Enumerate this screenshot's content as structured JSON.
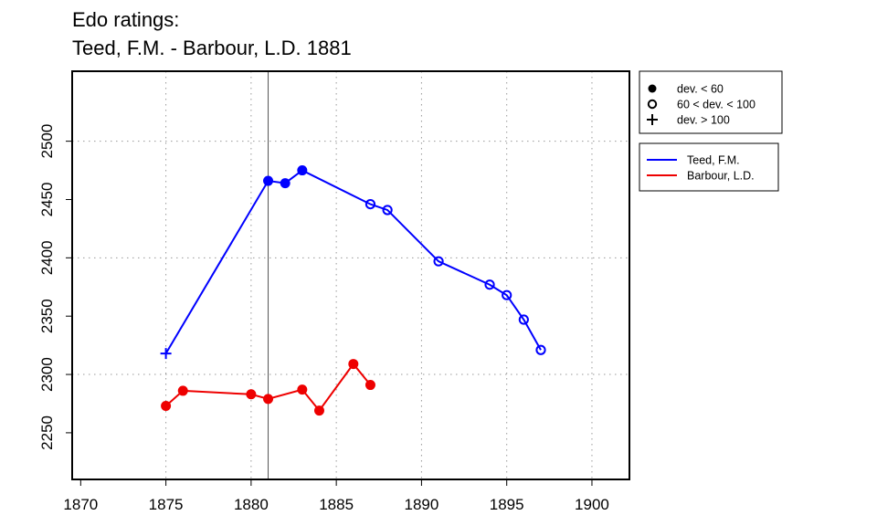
{
  "title_line1": "Edo ratings:",
  "title_line2": "Teed, F.M. - Barbour, L.D. 1881",
  "chart_data": {
    "type": "line",
    "xlim": [
      1869.5,
      1902.2
    ],
    "ylim": [
      2210,
      2560
    ],
    "x_ticks": [
      1870,
      1875,
      1880,
      1885,
      1890,
      1895,
      1900
    ],
    "y_ticks": [
      2250,
      2300,
      2350,
      2400,
      2450,
      2500
    ],
    "grid": true,
    "grid_x": [
      1875,
      1880,
      1885,
      1890,
      1895,
      1900
    ],
    "grid_y": [
      2300,
      2400,
      2500
    ],
    "reference_line_x": 1881,
    "marker_legend": [
      {
        "label": "dev. < 60",
        "marker": "filled-circle"
      },
      {
        "label": "60 < dev. < 100",
        "marker": "open-circle"
      },
      {
        "label": "dev. > 100",
        "marker": "plus"
      }
    ],
    "series": [
      {
        "name": "Teed, F.M.",
        "color": "#0000ff",
        "points": [
          {
            "x": 1875,
            "y": 2318,
            "marker": "plus"
          },
          {
            "x": 1881,
            "y": 2466,
            "marker": "filled-circle"
          },
          {
            "x": 1882,
            "y": 2464,
            "marker": "filled-circle"
          },
          {
            "x": 1883,
            "y": 2475,
            "marker": "filled-circle"
          },
          {
            "x": 1887,
            "y": 2446,
            "marker": "open-circle"
          },
          {
            "x": 1888,
            "y": 2441,
            "marker": "open-circle"
          },
          {
            "x": 1891,
            "y": 2397,
            "marker": "open-circle"
          },
          {
            "x": 1894,
            "y": 2377,
            "marker": "open-circle"
          },
          {
            "x": 1895,
            "y": 2368,
            "marker": "open-circle"
          },
          {
            "x": 1896,
            "y": 2347,
            "marker": "open-circle"
          },
          {
            "x": 1897,
            "y": 2321,
            "marker": "open-circle"
          }
        ]
      },
      {
        "name": "Barbour, L.D.",
        "color": "#ee0000",
        "points": [
          {
            "x": 1875,
            "y": 2273,
            "marker": "filled-circle"
          },
          {
            "x": 1876,
            "y": 2286,
            "marker": "filled-circle"
          },
          {
            "x": 1880,
            "y": 2283,
            "marker": "filled-circle"
          },
          {
            "x": 1881,
            "y": 2279,
            "marker": "filled-circle"
          },
          {
            "x": 1883,
            "y": 2287,
            "marker": "filled-circle"
          },
          {
            "x": 1884,
            "y": 2269,
            "marker": "filled-circle"
          },
          {
            "x": 1886,
            "y": 2309,
            "marker": "filled-circle"
          },
          {
            "x": 1887,
            "y": 2291,
            "marker": "filled-circle"
          }
        ]
      }
    ]
  }
}
